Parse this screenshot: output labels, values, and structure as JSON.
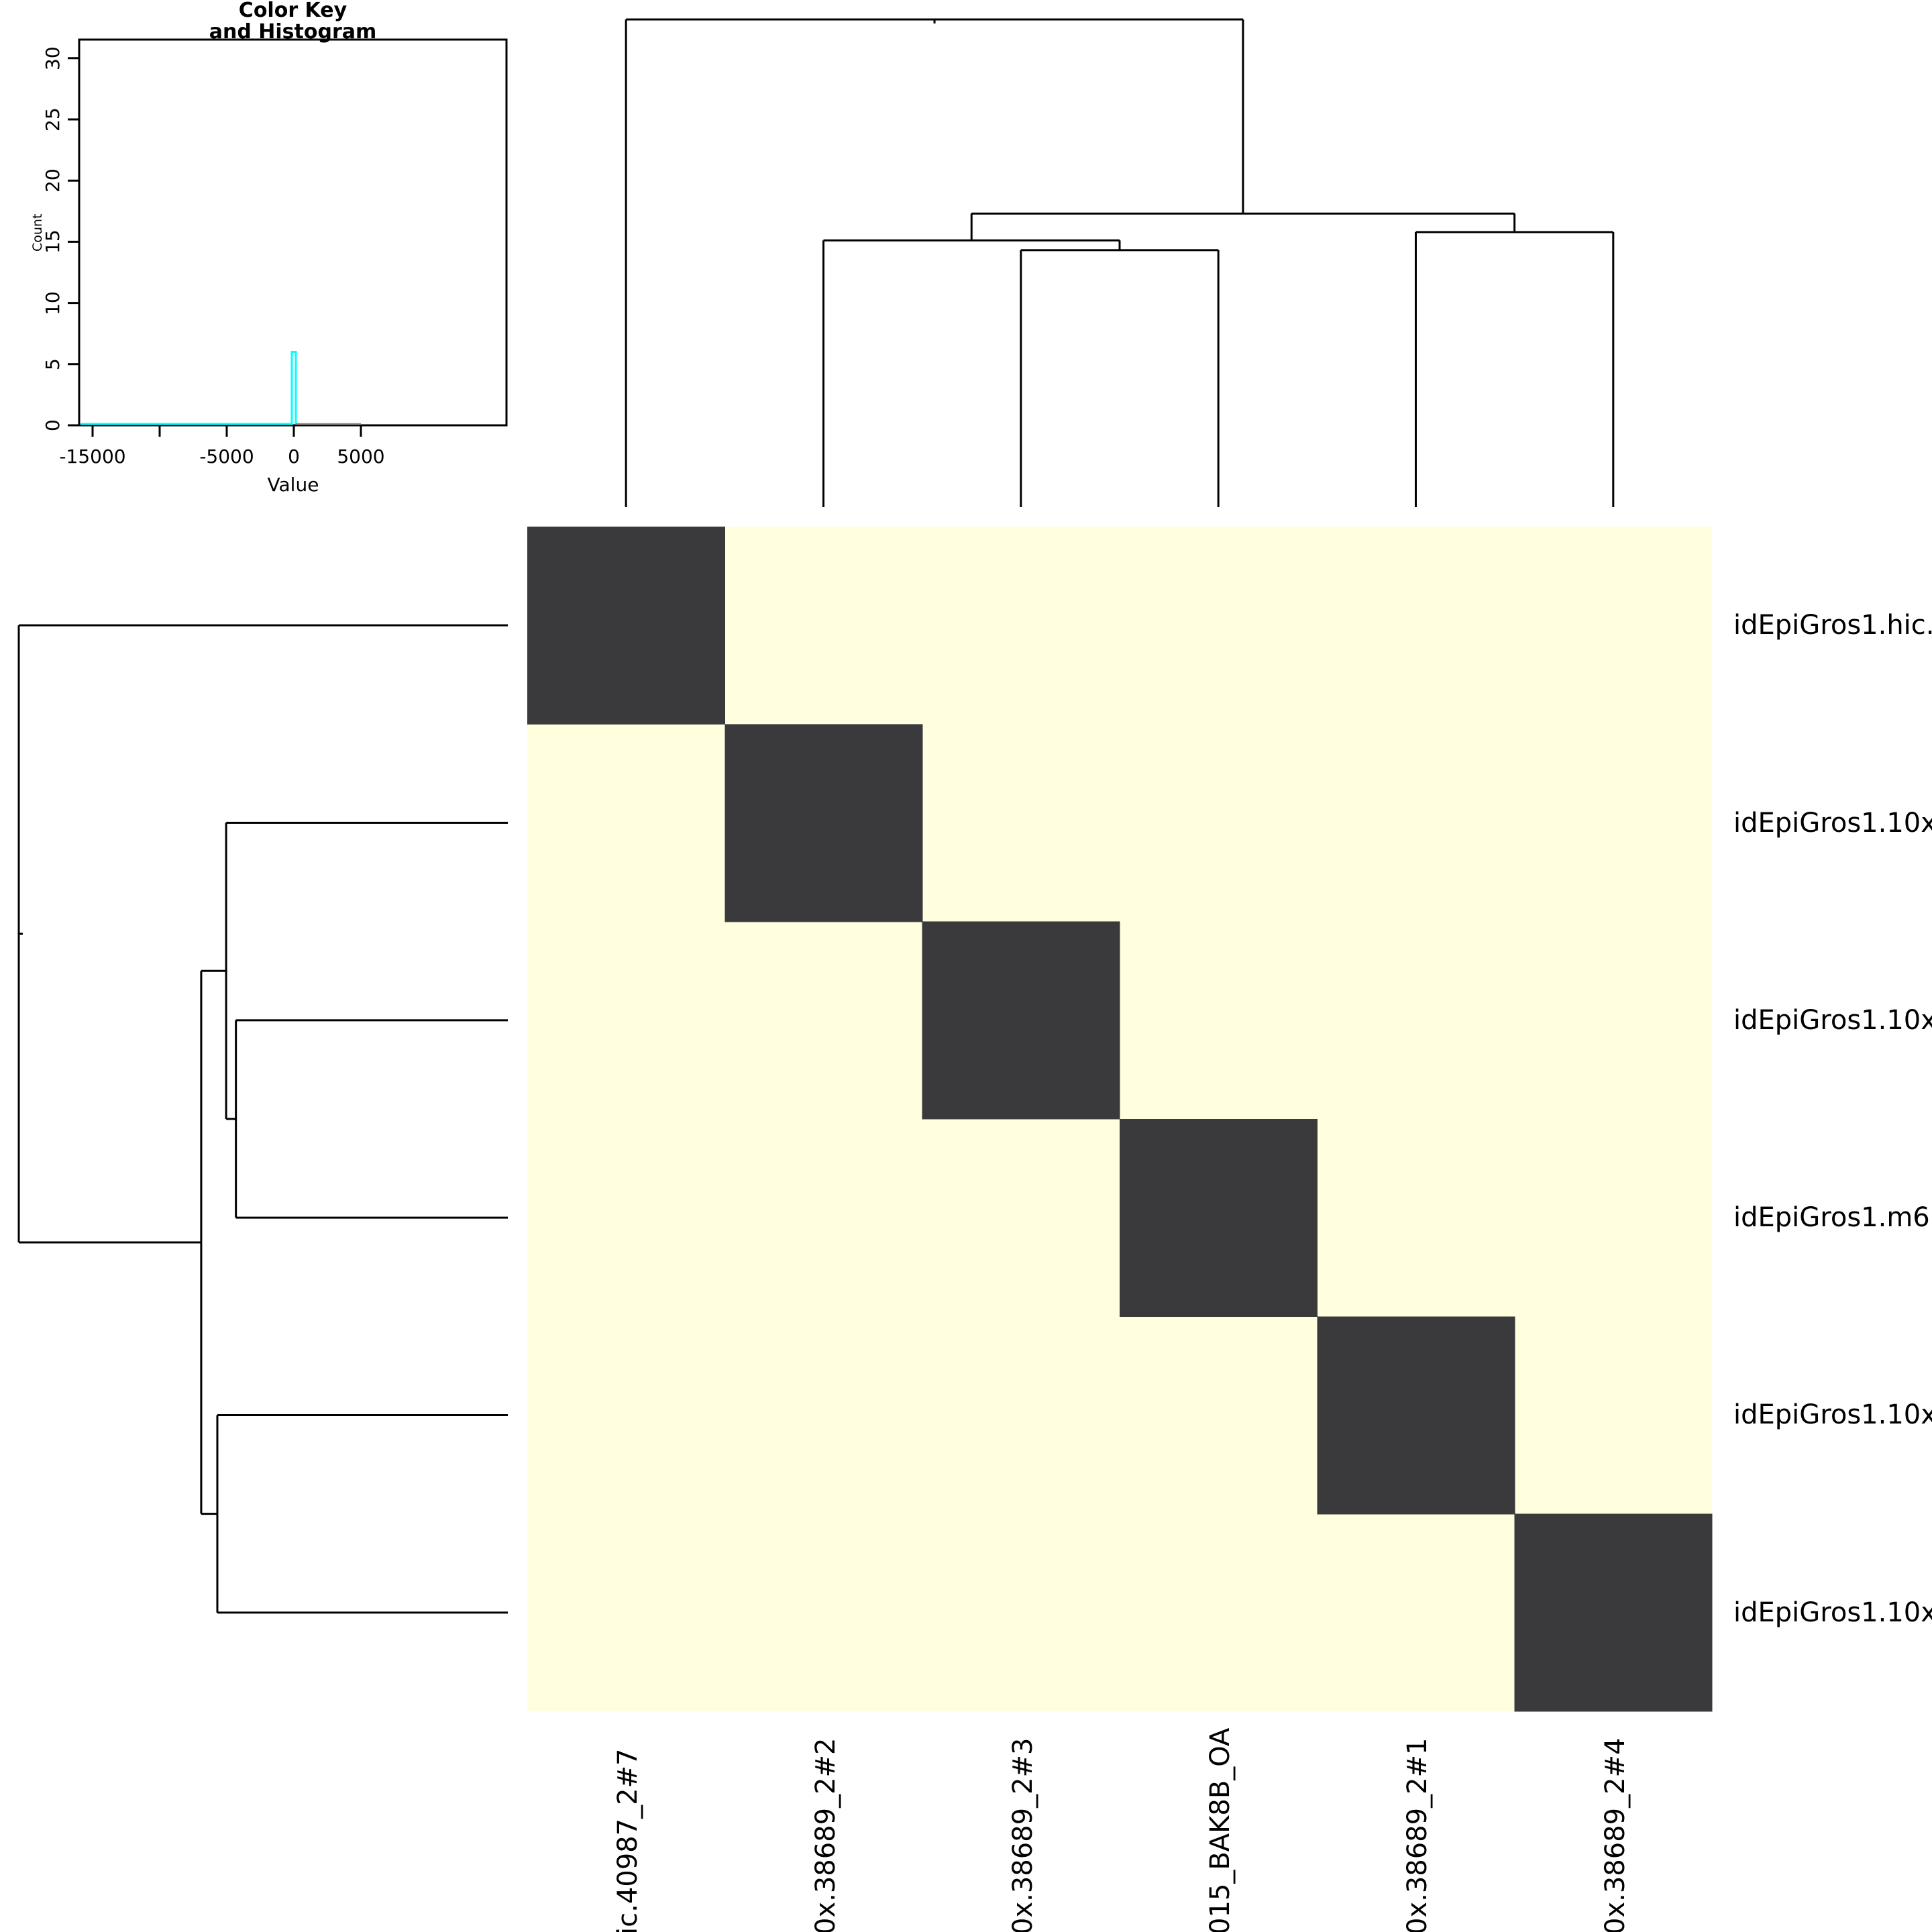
{
  "color_key": {
    "title_line1": "Color Key",
    "title_line2": "and Histogram",
    "x_axis": {
      "label": "Value",
      "tick_labels": [
        "-15000",
        "",
        "-5000",
        "0",
        "5000"
      ]
    },
    "y_axis": {
      "label": "Count",
      "tick_labels": [
        "0",
        "5",
        "10",
        "15",
        "20",
        "25",
        "30"
      ]
    }
  },
  "heatmap": {
    "row_labels": [
      "idEpiGros1.hic.",
      "idEpiGros1.10x",
      "idEpiGros1.10x",
      "idEpiGros1.m6",
      "idEpiGros1.10x",
      "idEpiGros1.10x"
    ],
    "col_labels": [
      "ic.40987_2#7",
      "0x.38689_2#2",
      "0x.38689_2#3",
      "015_BAK8B_OA",
      "0x.38689_2#1",
      "0x.38689_2#4"
    ]
  },
  "chart_data": [
    {
      "type": "heatmap",
      "n_rows": 6,
      "n_cols": 6,
      "row_labels": [
        "idEpiGros1.hic.",
        "idEpiGros1.10x",
        "idEpiGros1.10x",
        "idEpiGros1.m6",
        "idEpiGros1.10x",
        "idEpiGros1.10x"
      ],
      "col_labels": [
        "ic.40987_2#7",
        "0x.38689_2#2",
        "0x.38689_2#3",
        "015_BAK8B_OA",
        "0x.38689_2#1",
        "0x.38689_2#4"
      ],
      "matrix": [
        [
          1,
          0,
          0,
          0,
          0,
          0
        ],
        [
          0,
          1,
          0,
          0,
          0,
          0
        ],
        [
          0,
          0,
          1,
          0,
          0,
          0
        ],
        [
          0,
          0,
          0,
          1,
          0,
          0
        ],
        [
          0,
          0,
          0,
          0,
          1,
          0
        ],
        [
          0,
          0,
          0,
          0,
          0,
          1
        ]
      ],
      "diagonal_value": 0,
      "colors": {
        "diagonal": "#3a3a3c",
        "off_diagonal": "#ffffe0",
        "dendrogram_line": "#000000"
      },
      "col_dendrogram": {
        "merges": [
          {
            "id": "n1",
            "children": [
              "L2",
              "L3"
            ],
            "height": 0.527
          },
          {
            "id": "n2",
            "children": [
              "L1",
              "n1"
            ],
            "height": 0.547
          },
          {
            "id": "n3",
            "children": [
              "L4",
              "L5"
            ],
            "height": 0.564
          },
          {
            "id": "n4",
            "children": [
              "n2",
              "n3"
            ],
            "height": 0.602
          },
          {
            "id": "n5",
            "children": [
              "L0",
              "n4"
            ],
            "height": 1.0
          }
        ]
      },
      "row_dendrogram": {
        "merges": [
          {
            "id": "m1",
            "children": [
              "L2",
              "L3"
            ],
            "height": 0.556
          },
          {
            "id": "m2",
            "children": [
              "L1",
              "m1"
            ],
            "height": 0.576
          },
          {
            "id": "m3",
            "children": [
              "L4",
              "L5"
            ],
            "height": 0.594
          },
          {
            "id": "m4",
            "children": [
              "m2",
              "m3"
            ],
            "height": 0.627
          },
          {
            "id": "m5",
            "children": [
              "L0",
              "m4"
            ],
            "height": 1.0
          }
        ]
      }
    },
    {
      "type": "histogram",
      "title": "Color Key and Histogram",
      "xlabel": "Value",
      "ylabel": "Count",
      "xlim": [
        -16000,
        15850
      ],
      "ylim": [
        0,
        31.5
      ],
      "x_ticks": [
        {
          "value": -15000,
          "label": "-15000"
        },
        {
          "value": -10000,
          "label": ""
        },
        {
          "value": -5000,
          "label": "-5000"
        },
        {
          "value": 0,
          "label": "0"
        },
        {
          "value": 5000,
          "label": "5000"
        }
      ],
      "y_ticks": [
        0,
        5,
        10,
        15,
        20,
        25,
        30
      ],
      "bins": [
        {
          "value": 0,
          "count": 6
        }
      ],
      "baseline_count": 0,
      "line_color": "#00ffff",
      "tail": {
        "from_value": 0,
        "to_value": 5000,
        "color": "#8c8c8c"
      }
    }
  ]
}
